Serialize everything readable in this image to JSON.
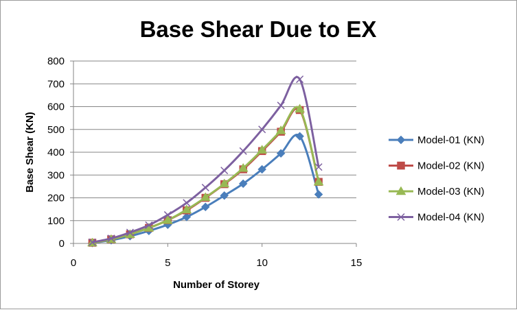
{
  "chart_data": {
    "type": "scatter",
    "title": "Base Shear Due to EX",
    "xlabel": "Number of Storey",
    "ylabel": "Base Shear (KN)",
    "xlim": [
      0,
      15
    ],
    "ylim": [
      0,
      800
    ],
    "xticks": [
      0,
      5,
      10,
      15
    ],
    "yticks": [
      0,
      100,
      200,
      300,
      400,
      500,
      600,
      700,
      800
    ],
    "grid": "horizontal major gridlines",
    "legend_position": "right",
    "x": [
      1,
      2,
      3,
      4,
      5,
      6,
      7,
      8,
      9,
      10,
      11,
      12,
      13
    ],
    "series": [
      {
        "name": "Model-01 (KN)",
        "color": "#4a7ebb",
        "marker": "diamond",
        "values": [
          2,
          14,
          32,
          55,
          82,
          116,
          160,
          210,
          262,
          325,
          395,
          470,
          215
        ]
      },
      {
        "name": "Model-02 (KN)",
        "color": "#be4b48",
        "marker": "square",
        "values": [
          3,
          18,
          40,
          68,
          102,
          145,
          200,
          260,
          325,
          405,
          490,
          585,
          270
        ]
      },
      {
        "name": "Model-03 (KN)",
        "color": "#98b954",
        "marker": "triangle",
        "values": [
          3,
          18,
          40,
          68,
          102,
          148,
          202,
          262,
          330,
          410,
          495,
          590,
          270
        ]
      },
      {
        "name": "Model-04 (KN)",
        "color": "#7d60a0",
        "marker": "x",
        "values": [
          5,
          22,
          48,
          80,
          125,
          178,
          245,
          320,
          405,
          500,
          605,
          720,
          335
        ]
      }
    ]
  }
}
